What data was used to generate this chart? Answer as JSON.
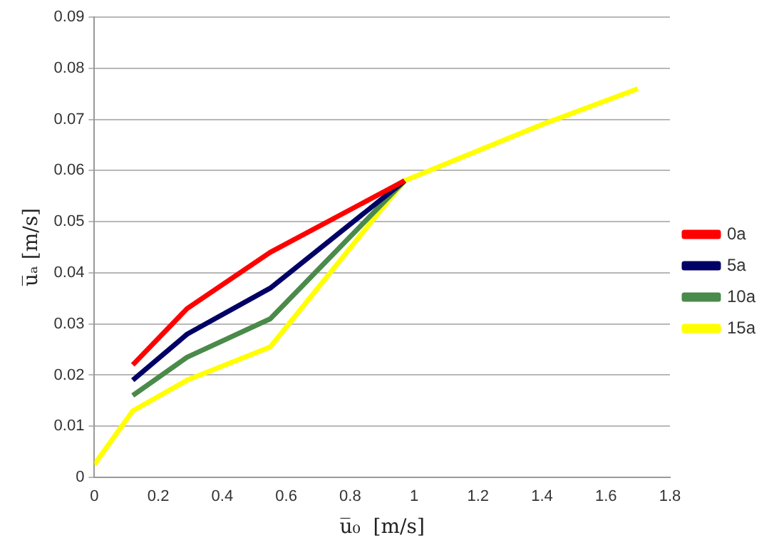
{
  "chart_data": {
    "type": "line",
    "xlabel": "u̅₀  [m/s]",
    "ylabel": "u̅ₐ [m/s]",
    "xlim": [
      0,
      1.8
    ],
    "xticks": [
      0,
      0.2,
      0.4,
      0.6,
      0.8,
      1,
      1.2,
      1.4,
      1.6,
      1.8
    ],
    "ylim": [
      0,
      0.09
    ],
    "yticks": [
      0,
      0.01,
      0.02,
      0.03,
      0.04,
      0.05,
      0.06,
      0.07,
      0.08,
      0.09
    ],
    "grid": "y",
    "legend": "right",
    "marker": "none",
    "line_style": "solid",
    "series": [
      {
        "name": "0a",
        "color": "#ff0000",
        "x": [
          0.12,
          0.29,
          0.55,
          0.97
        ],
        "values": [
          0.022,
          0.033,
          0.044,
          0.058
        ]
      },
      {
        "name": "5a",
        "color": "#000066",
        "x": [
          0.12,
          0.29,
          0.55,
          0.97
        ],
        "values": [
          0.019,
          0.028,
          0.037,
          0.058
        ]
      },
      {
        "name": "10a",
        "color": "#4a8a4a",
        "x": [
          0.12,
          0.29,
          0.55,
          0.97
        ],
        "values": [
          0.016,
          0.0235,
          0.031,
          0.058
        ]
      },
      {
        "name": "15a",
        "color": "#ffff00",
        "x": [
          0,
          0.12,
          0.29,
          0.55,
          0.97,
          1.4,
          1.7
        ],
        "values": [
          0.0025,
          0.013,
          0.019,
          0.0255,
          0.058,
          0.069,
          0.076
        ]
      }
    ]
  }
}
